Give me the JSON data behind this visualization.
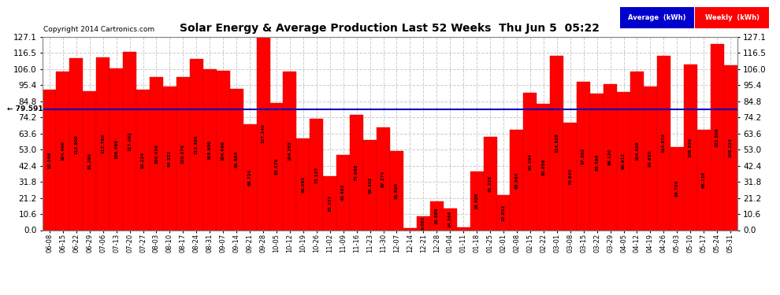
{
  "title": "Solar Energy & Average Production Last 52 Weeks  Thu Jun 5  05:22",
  "copyright": "Copyright 2014 Cartronics.com",
  "average_value": 79.591,
  "ylim_max": 127.1,
  "yticks": [
    0.0,
    10.6,
    21.2,
    31.8,
    42.4,
    53.0,
    63.6,
    74.2,
    84.8,
    95.4,
    106.0,
    116.5,
    127.1
  ],
  "bar_color": "#ff0000",
  "avg_line_color": "#0000bb",
  "background_color": "#ffffff",
  "grid_color": "#cccccc",
  "categories": [
    "06-08",
    "06-15",
    "06-22",
    "06-29",
    "07-06",
    "07-13",
    "07-20",
    "07-27",
    "08-03",
    "08-10",
    "08-17",
    "08-24",
    "08-31",
    "09-07",
    "09-14",
    "09-21",
    "09-28",
    "10-05",
    "10-12",
    "10-19",
    "10-26",
    "11-02",
    "11-09",
    "11-16",
    "11-23",
    "11-30",
    "12-07",
    "12-14",
    "12-21",
    "12-28",
    "01-04",
    "01-11",
    "01-18",
    "01-25",
    "02-01",
    "02-08",
    "02-15",
    "02-22",
    "03-01",
    "03-08",
    "03-15",
    "03-22",
    "03-29",
    "04-05",
    "04-12",
    "04-19",
    "04-26",
    "05-03",
    "05-10",
    "05-17",
    "05-24",
    "05-31"
  ],
  "values": [
    92.546,
    104.406,
    112.9,
    91.29,
    113.79,
    106.468,
    117.092,
    92.224,
    100.436,
    94.222,
    100.576,
    112.301,
    105.609,
    104.966,
    92.884,
    69.724,
    127.14,
    83.579,
    104.283,
    60.093,
    73.137,
    35.237,
    49.463,
    75.968,
    59.302,
    67.274,
    51.82,
    1.053,
    9.092,
    18.885,
    14.364,
    1.752,
    38.62,
    61.228,
    22.832,
    65.964,
    90.104,
    82.856,
    114.528,
    70.84,
    97.302,
    89.596,
    96.12,
    90.912,
    104.028,
    94.65,
    114.872,
    54.704,
    108.83,
    66.128,
    122.5,
    108.224
  ],
  "legend_avg_color": "#0000cc",
  "legend_weekly_color": "#ff0000",
  "legend_avg_label": "Average  (kWh)",
  "legend_weekly_label": "Weekly  (kWh)"
}
